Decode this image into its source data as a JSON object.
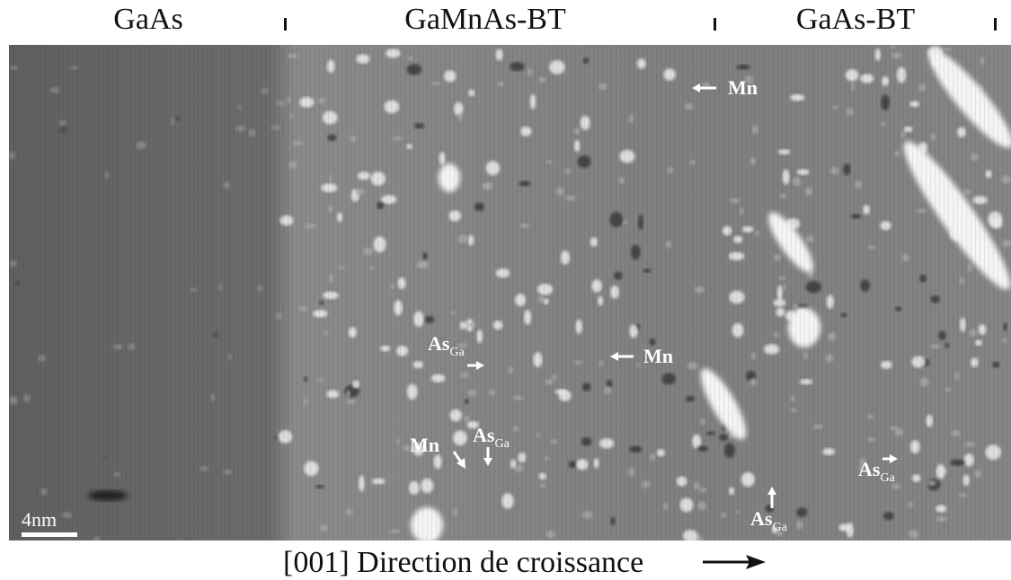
{
  "header": {
    "regions": [
      "GaAs",
      "GaMnAs-BT",
      "GaAs-BT"
    ]
  },
  "annotations": [
    {
      "main": "Mn"
    },
    {
      "main": "As",
      "sub": "Ga"
    },
    {
      "main": "Mn"
    },
    {
      "main": "Mn"
    },
    {
      "main": "As",
      "sub": "Ga"
    },
    {
      "main": "As",
      "sub": "Ga"
    },
    {
      "main": "As",
      "sub": "Ga"
    }
  ],
  "scale_bar": "4nm",
  "caption": "[001] Direction de croissance"
}
